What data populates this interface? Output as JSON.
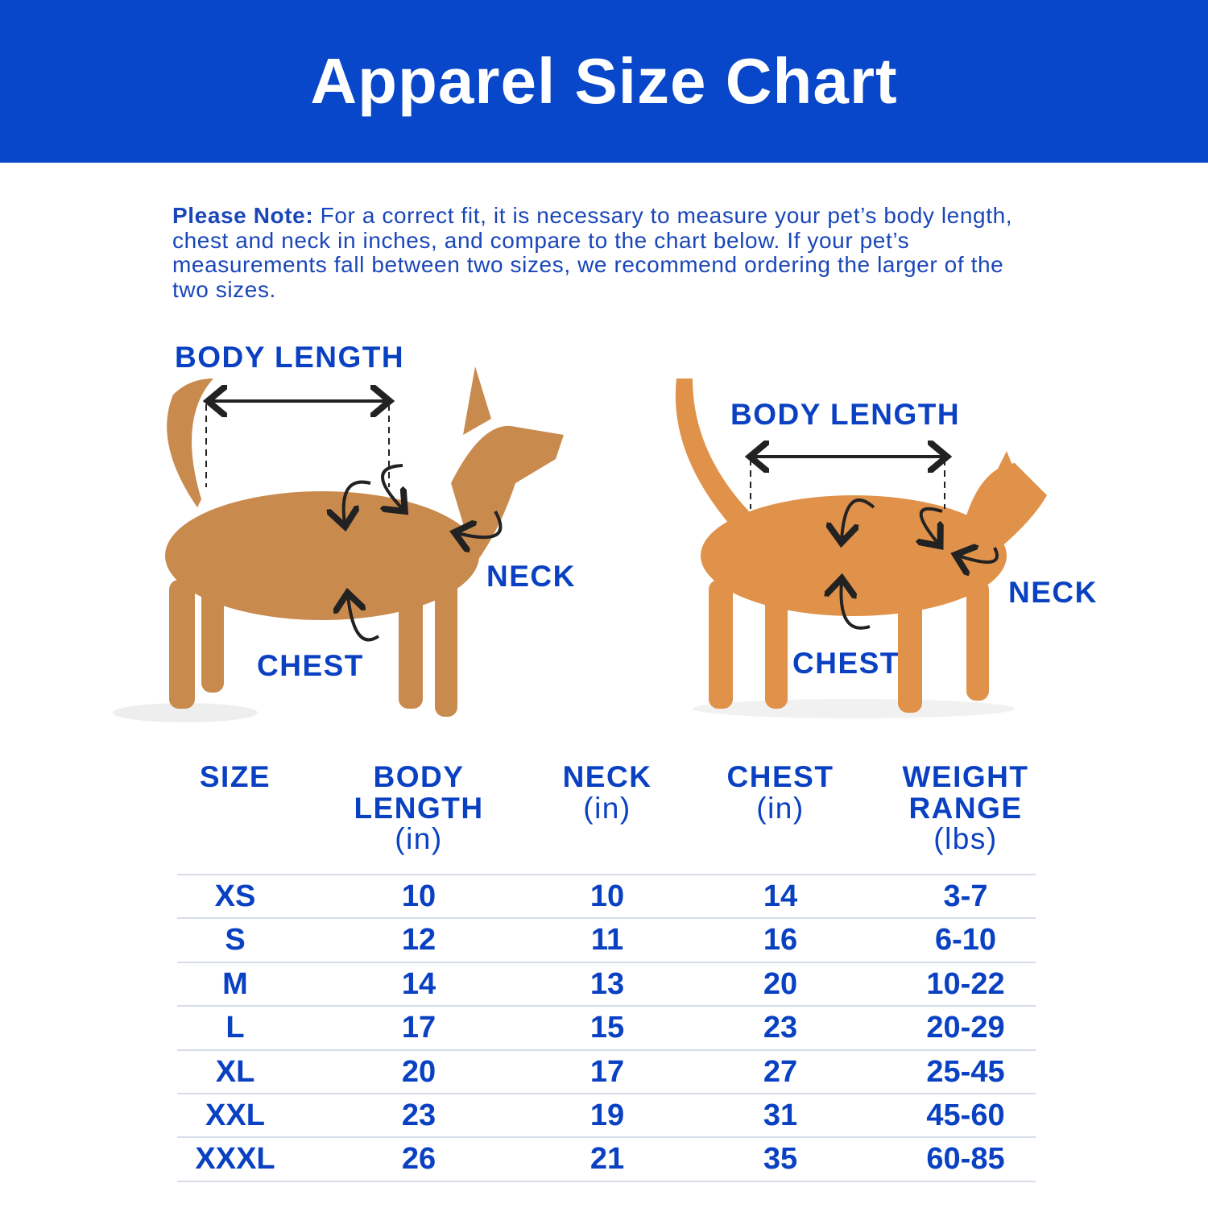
{
  "header": {
    "title": "Apparel Size Chart"
  },
  "note": {
    "label": "Please Note:",
    "text": " For a correct fit, it is necessary to measure your pet’s body length, chest and neck in inches, and compare to the chart below. If your pet’s measurements fall between two sizes, we recommend ordering the larger of the two sizes."
  },
  "dog": {
    "body_length": "BODY LENGTH",
    "neck": "NECK",
    "chest": "CHEST"
  },
  "cat": {
    "body_length": "BODY LENGTH",
    "neck": "NECK",
    "chest": "CHEST"
  },
  "table": {
    "headers": [
      {
        "title": "SIZE",
        "unit": ""
      },
      {
        "title": "BODY LENGTH",
        "unit": "(in)"
      },
      {
        "title": "NECK",
        "unit": "(in)"
      },
      {
        "title": "CHEST",
        "unit": "(in)"
      },
      {
        "title": "WEIGHT RANGE",
        "unit": "(lbs)"
      }
    ],
    "rows": [
      [
        "XS",
        "10",
        "10",
        "14",
        "3-7"
      ],
      [
        "S",
        "12",
        "11",
        "16",
        "6-10"
      ],
      [
        "M",
        "14",
        "13",
        "20",
        "10-22"
      ],
      [
        "L",
        "17",
        "15",
        "23",
        "20-29"
      ],
      [
        "XL",
        "20",
        "17",
        "27",
        "25-45"
      ],
      [
        "XXL",
        "23",
        "19",
        "31",
        "45-60"
      ],
      [
        "XXXL",
        "26",
        "21",
        "35",
        "60-85"
      ]
    ]
  },
  "colors": {
    "brand_blue": "#0847c9",
    "text_blue": "#0a41c2",
    "dog": "#c98a4e",
    "cat": "#e0924a"
  }
}
